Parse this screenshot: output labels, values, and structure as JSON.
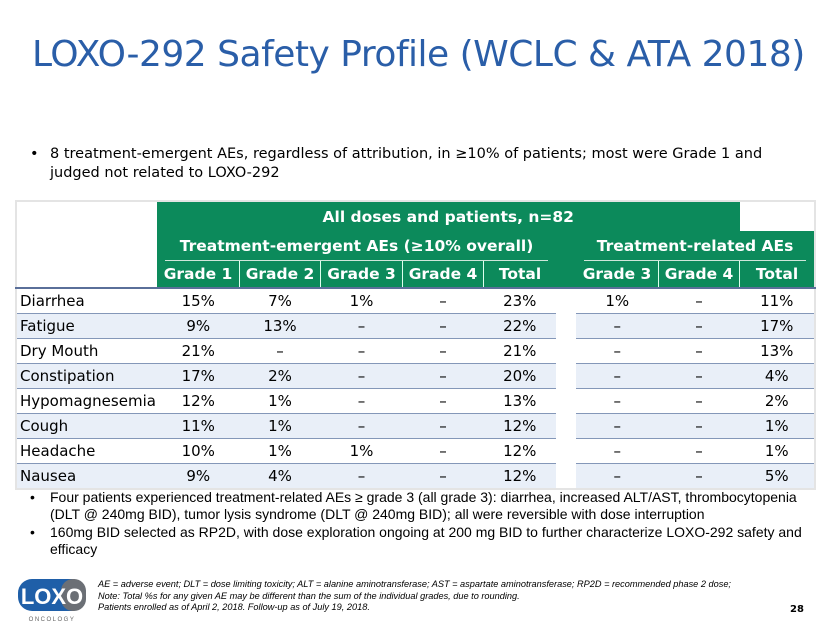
{
  "title": "LOXO-292 Safety Profile (WCLC & ATA 2018)",
  "bullets_top": [
    "8 treatment-emergent AEs, regardless of attribution, in ≥10% of patients; most were Grade 1 and judged not related to LOXO-292"
  ],
  "table": {
    "header_main": "All doses and patients, n=82",
    "group_emergent": "Treatment-emergent AEs (≥10% overall)",
    "group_related": "Treatment-related AEs",
    "columns": [
      "Grade 1",
      "Grade 2",
      "Grade 3",
      "Grade 4",
      "Total",
      "Grade 3",
      "Grade 4",
      "Total"
    ],
    "rows": [
      {
        "ae": "Diarrhea",
        "v": [
          "15%",
          "7%",
          "1%",
          "–",
          "23%",
          "1%",
          "–",
          "11%"
        ]
      },
      {
        "ae": "Fatigue",
        "v": [
          "9%",
          "13%",
          "–",
          "–",
          "22%",
          "–",
          "–",
          "17%"
        ]
      },
      {
        "ae": "Dry Mouth",
        "v": [
          "21%",
          "–",
          "–",
          "–",
          "21%",
          "–",
          "–",
          "13%"
        ]
      },
      {
        "ae": "Constipation",
        "v": [
          "17%",
          "2%",
          "–",
          "–",
          "20%",
          "–",
          "–",
          "4%"
        ]
      },
      {
        "ae": "Hypomagnesemia",
        "v": [
          "12%",
          "1%",
          "–",
          "–",
          "13%",
          "–",
          "–",
          "2%"
        ]
      },
      {
        "ae": "Cough",
        "v": [
          "11%",
          "1%",
          "–",
          "–",
          "12%",
          "–",
          "–",
          "1%"
        ]
      },
      {
        "ae": "Headache",
        "v": [
          "10%",
          "1%",
          "1%",
          "–",
          "12%",
          "–",
          "–",
          "1%"
        ]
      },
      {
        "ae": "Nausea",
        "v": [
          "9%",
          "4%",
          "–",
          "–",
          "12%",
          "–",
          "–",
          "5%"
        ]
      }
    ]
  },
  "bullets_bottom": [
    "Four patients experienced treatment-related AEs ≥ grade 3 (all grade 3): diarrhea, increased ALT/AST, thrombocytopenia (DLT @ 240mg BID), tumor lysis syndrome (DLT @ 240mg BID); all were reversible with dose interruption",
    "160mg BID selected as RP2D, with dose exploration ongoing at 200 mg BID to further characterize LOXO-292 safety and efficacy"
  ],
  "footnotes": [
    "AE = adverse event; DLT = dose limiting toxicity; ALT = alanine aminotransferase; AST = aspartate aminotransferase; RP2D = recommended phase 2 dose;",
    "Note: Total %s for any given AE may be different than the sum of the individual grades, due to rounding.",
    "Patients enrolled as of April 2, 2018. Follow-up as of July 19, 2018."
  ],
  "logo": {
    "text": "LOXO",
    "subtext": "ONCOLOGY"
  },
  "page_number": "28",
  "colors": {
    "title": "#2a5ea8",
    "header_green": "#0c8a5b",
    "row_alt": "#e9eff8"
  }
}
